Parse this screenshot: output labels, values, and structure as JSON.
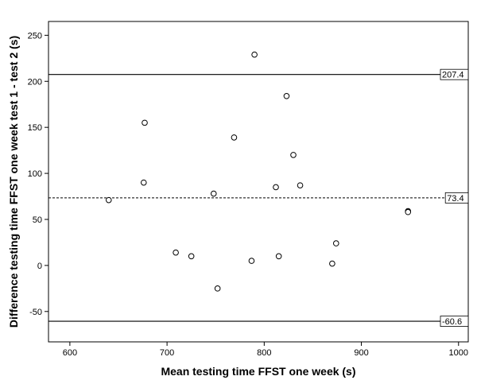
{
  "chart_data": {
    "type": "scatter",
    "xlabel": "Mean testing time FFST one week (s)",
    "ylabel": "Difference testing time FFST one week test 1 - test 2 (s)",
    "xlim": [
      578,
      1010
    ],
    "ylim": [
      -83,
      265
    ],
    "x_ticks": [
      600,
      700,
      800,
      900,
      1000
    ],
    "y_ticks": [
      -50,
      0,
      50,
      100,
      150,
      200,
      250
    ],
    "grid": false,
    "points": [
      {
        "x": 640,
        "y": 71
      },
      {
        "x": 676,
        "y": 90
      },
      {
        "x": 677,
        "y": 155
      },
      {
        "x": 709,
        "y": 14
      },
      {
        "x": 725,
        "y": 10
      },
      {
        "x": 748,
        "y": 78
      },
      {
        "x": 752,
        "y": -25
      },
      {
        "x": 769,
        "y": 139
      },
      {
        "x": 787,
        "y": 5
      },
      {
        "x": 790,
        "y": 229
      },
      {
        "x": 812,
        "y": 85
      },
      {
        "x": 815,
        "y": 10
      },
      {
        "x": 823,
        "y": 184
      },
      {
        "x": 830,
        "y": 120
      },
      {
        "x": 837,
        "y": 87
      },
      {
        "x": 870,
        "y": 2
      },
      {
        "x": 874,
        "y": 24
      },
      {
        "x": 948,
        "y": 59
      },
      {
        "x": 948,
        "y": 58
      }
    ],
    "reference_lines": [
      {
        "value": 207.4,
        "label": "207.4",
        "style": "solid"
      },
      {
        "value": 73.4,
        "label": "73.4",
        "style": "dashed"
      },
      {
        "value": -60.6,
        "label": "-60.6",
        "style": "solid"
      }
    ]
  }
}
